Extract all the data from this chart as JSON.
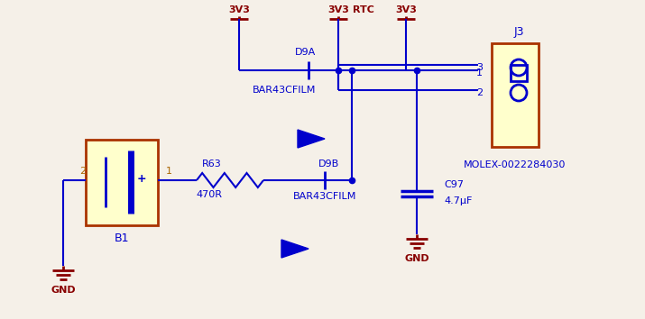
{
  "bg_color": "#f5f0e8",
  "wire_color": "#0000cc",
  "power_color": "#880000",
  "component_color": "#0000cc",
  "battery_fill": "#ffffcc",
  "battery_border": "#aa3300",
  "connector_fill": "#ffffcc",
  "connector_border": "#aa3300",
  "labels": {
    "3V3_left": "3V3",
    "3V3_mid": "3V3",
    "RTC": "RTC",
    "3V3_right": "3V3",
    "D9A": "D9A",
    "D9A_part": "BAR43CFILM",
    "D9B": "D9B",
    "D9B_part": "BAR43CFILM",
    "R63": "R63",
    "R63_val": "470R",
    "C97": "C97",
    "C97_val": "4.7μF",
    "J3": "J3",
    "J3_part": "MOLEX-0022284030",
    "B1": "B1",
    "GND": "GND",
    "pin1": "1",
    "pin2": "2",
    "pin3": "3"
  }
}
